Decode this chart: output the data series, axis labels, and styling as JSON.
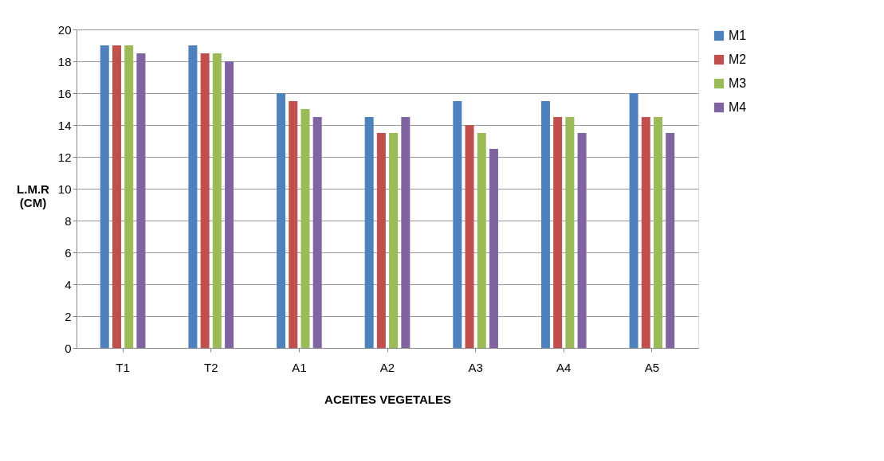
{
  "chart_data": {
    "type": "bar",
    "xlabel": "ACEITES VEGETALES",
    "ylabel": "L.M.R (CM)",
    "categories": [
      "T1",
      "T2",
      "A1",
      "A2",
      "A3",
      "A4",
      "A5"
    ],
    "series": [
      {
        "name": "M1",
        "color": "#4f81bd",
        "values": [
          19,
          19,
          16,
          14.5,
          15.5,
          15.5,
          16
        ]
      },
      {
        "name": "M2",
        "color": "#c0504d",
        "values": [
          19,
          18.5,
          15.5,
          13.5,
          14,
          14.5,
          14.5
        ]
      },
      {
        "name": "M3",
        "color": "#9bbb59",
        "values": [
          19,
          18.5,
          15,
          13.5,
          13.5,
          14.5,
          14.5
        ]
      },
      {
        "name": "M4",
        "color": "#8064a2",
        "values": [
          18.5,
          18,
          14.5,
          14.5,
          12.5,
          13.5,
          13.5
        ]
      }
    ],
    "ylim": [
      0,
      20
    ],
    "yticks": [
      0,
      2,
      4,
      6,
      8,
      10,
      12,
      14,
      16,
      18,
      20
    ],
    "grid": "y",
    "legend": "right"
  }
}
